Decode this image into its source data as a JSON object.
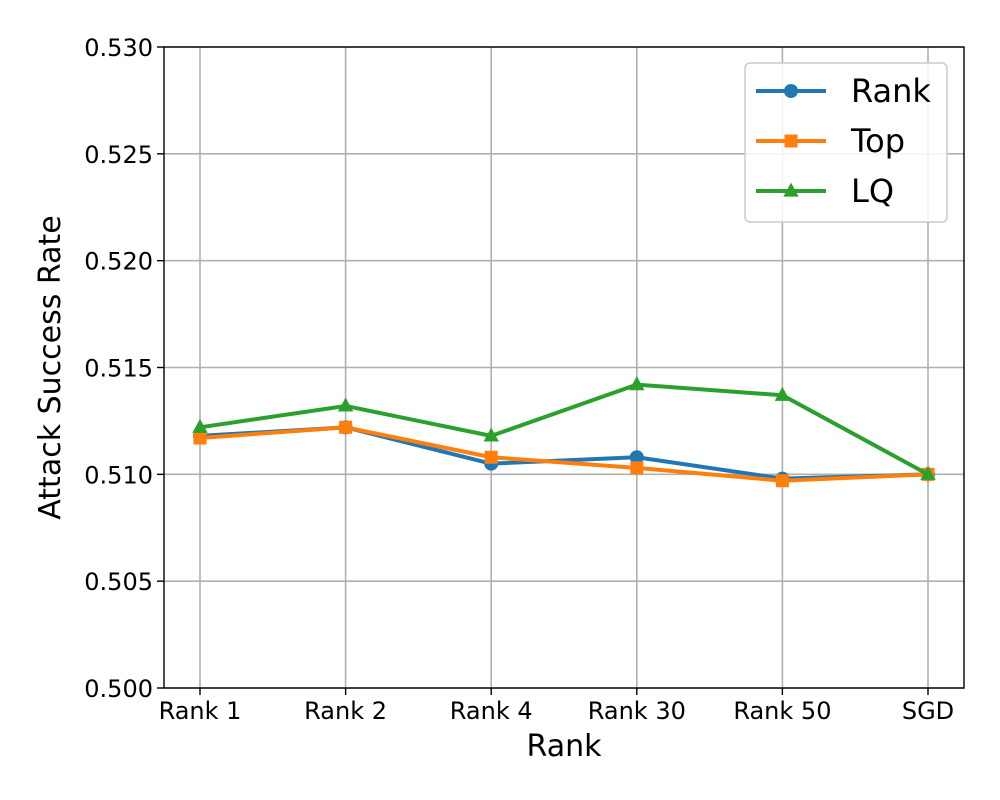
{
  "chart_data": {
    "type": "line",
    "categories": [
      "Rank 1",
      "Rank 2",
      "Rank 4",
      "Rank 30",
      "Rank 50",
      "SGD"
    ],
    "xlabel": "Rank",
    "ylabel": "Attack Success Rate",
    "ylim": [
      0.5,
      0.53
    ],
    "yticks": [
      0.5,
      0.505,
      0.51,
      0.515,
      0.52,
      0.525,
      0.53
    ],
    "ytick_labels": [
      "0.500",
      "0.505",
      "0.510",
      "0.515",
      "0.520",
      "0.525",
      "0.530"
    ],
    "grid": true,
    "legend_position": "top-right",
    "series": [
      {
        "name": "Rank",
        "color": "#1f77b4",
        "marker": "circle",
        "values": [
          0.5118,
          0.5122,
          0.5105,
          0.5108,
          0.5098,
          0.51
        ]
      },
      {
        "name": "Top",
        "color": "#ff7f0e",
        "marker": "square",
        "values": [
          0.5117,
          0.5122,
          0.5108,
          0.5103,
          0.5097,
          0.51
        ]
      },
      {
        "name": "LQ",
        "color": "#2ca02c",
        "marker": "triangle",
        "values": [
          0.5122,
          0.5132,
          0.5118,
          0.5142,
          0.5137,
          0.51
        ]
      }
    ]
  }
}
